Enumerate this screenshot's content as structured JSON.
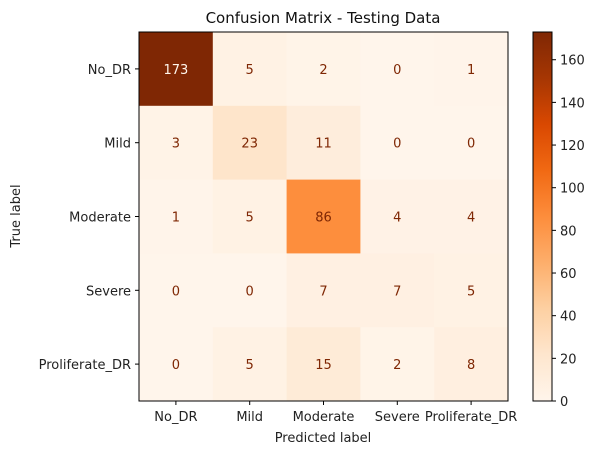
{
  "chart_data": {
    "type": "heatmap",
    "title": "Confusion Matrix - Testing Data",
    "xlabel": "Predicted label",
    "ylabel": "True label",
    "x_categories": [
      "No_DR",
      "Mild",
      "Moderate",
      "Severe",
      "Proliferate_DR"
    ],
    "y_categories": [
      "No_DR",
      "Mild",
      "Moderate",
      "Severe",
      "Proliferate_DR"
    ],
    "values": [
      [
        173,
        5,
        2,
        0,
        1
      ],
      [
        3,
        23,
        11,
        0,
        0
      ],
      [
        1,
        5,
        86,
        4,
        4
      ],
      [
        0,
        0,
        7,
        7,
        5
      ],
      [
        0,
        5,
        15,
        2,
        8
      ]
    ],
    "colormap": "Oranges",
    "colorbar_range": [
      0,
      173
    ],
    "colorbar_ticks": [
      0,
      20,
      40,
      60,
      80,
      100,
      120,
      140,
      160
    ],
    "colors": {
      "low": "#fff5eb",
      "high": "#7f2704",
      "text_dark": "#7f2704",
      "text_light": "#fff5eb"
    }
  }
}
